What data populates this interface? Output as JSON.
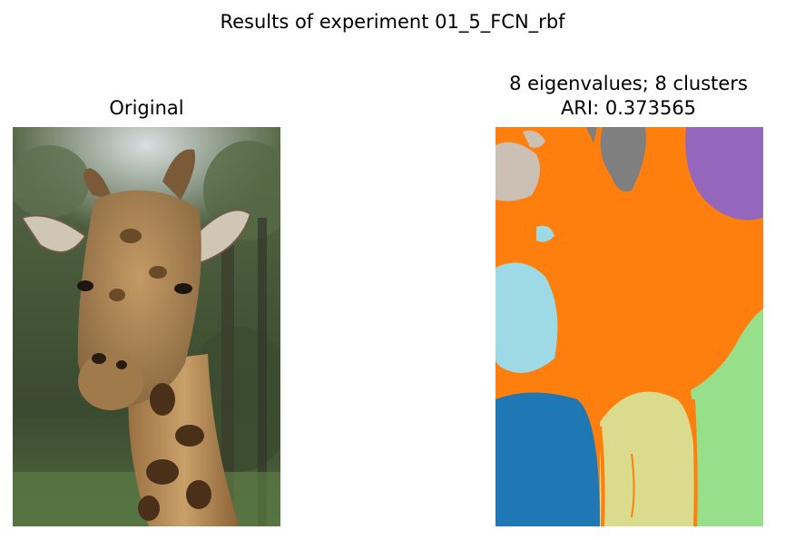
{
  "figure": {
    "suptitle": "Results of experiment 01_5_FCN_rbf"
  },
  "panels": {
    "original": {
      "title": "Original",
      "image": "giraffe-photo"
    },
    "segmentation": {
      "title": "8 eigenvalues; 8 clusters\nARI: 0.373565",
      "eigenvalues": 8,
      "clusters": 8,
      "ari": 0.373565,
      "cluster_colors": [
        "#ff7f0e",
        "#1f77b4",
        "#98df8a",
        "#dbdb8d",
        "#9edae5",
        "#9467bd",
        "#7f7f7f",
        "#c7c7c7"
      ]
    }
  }
}
